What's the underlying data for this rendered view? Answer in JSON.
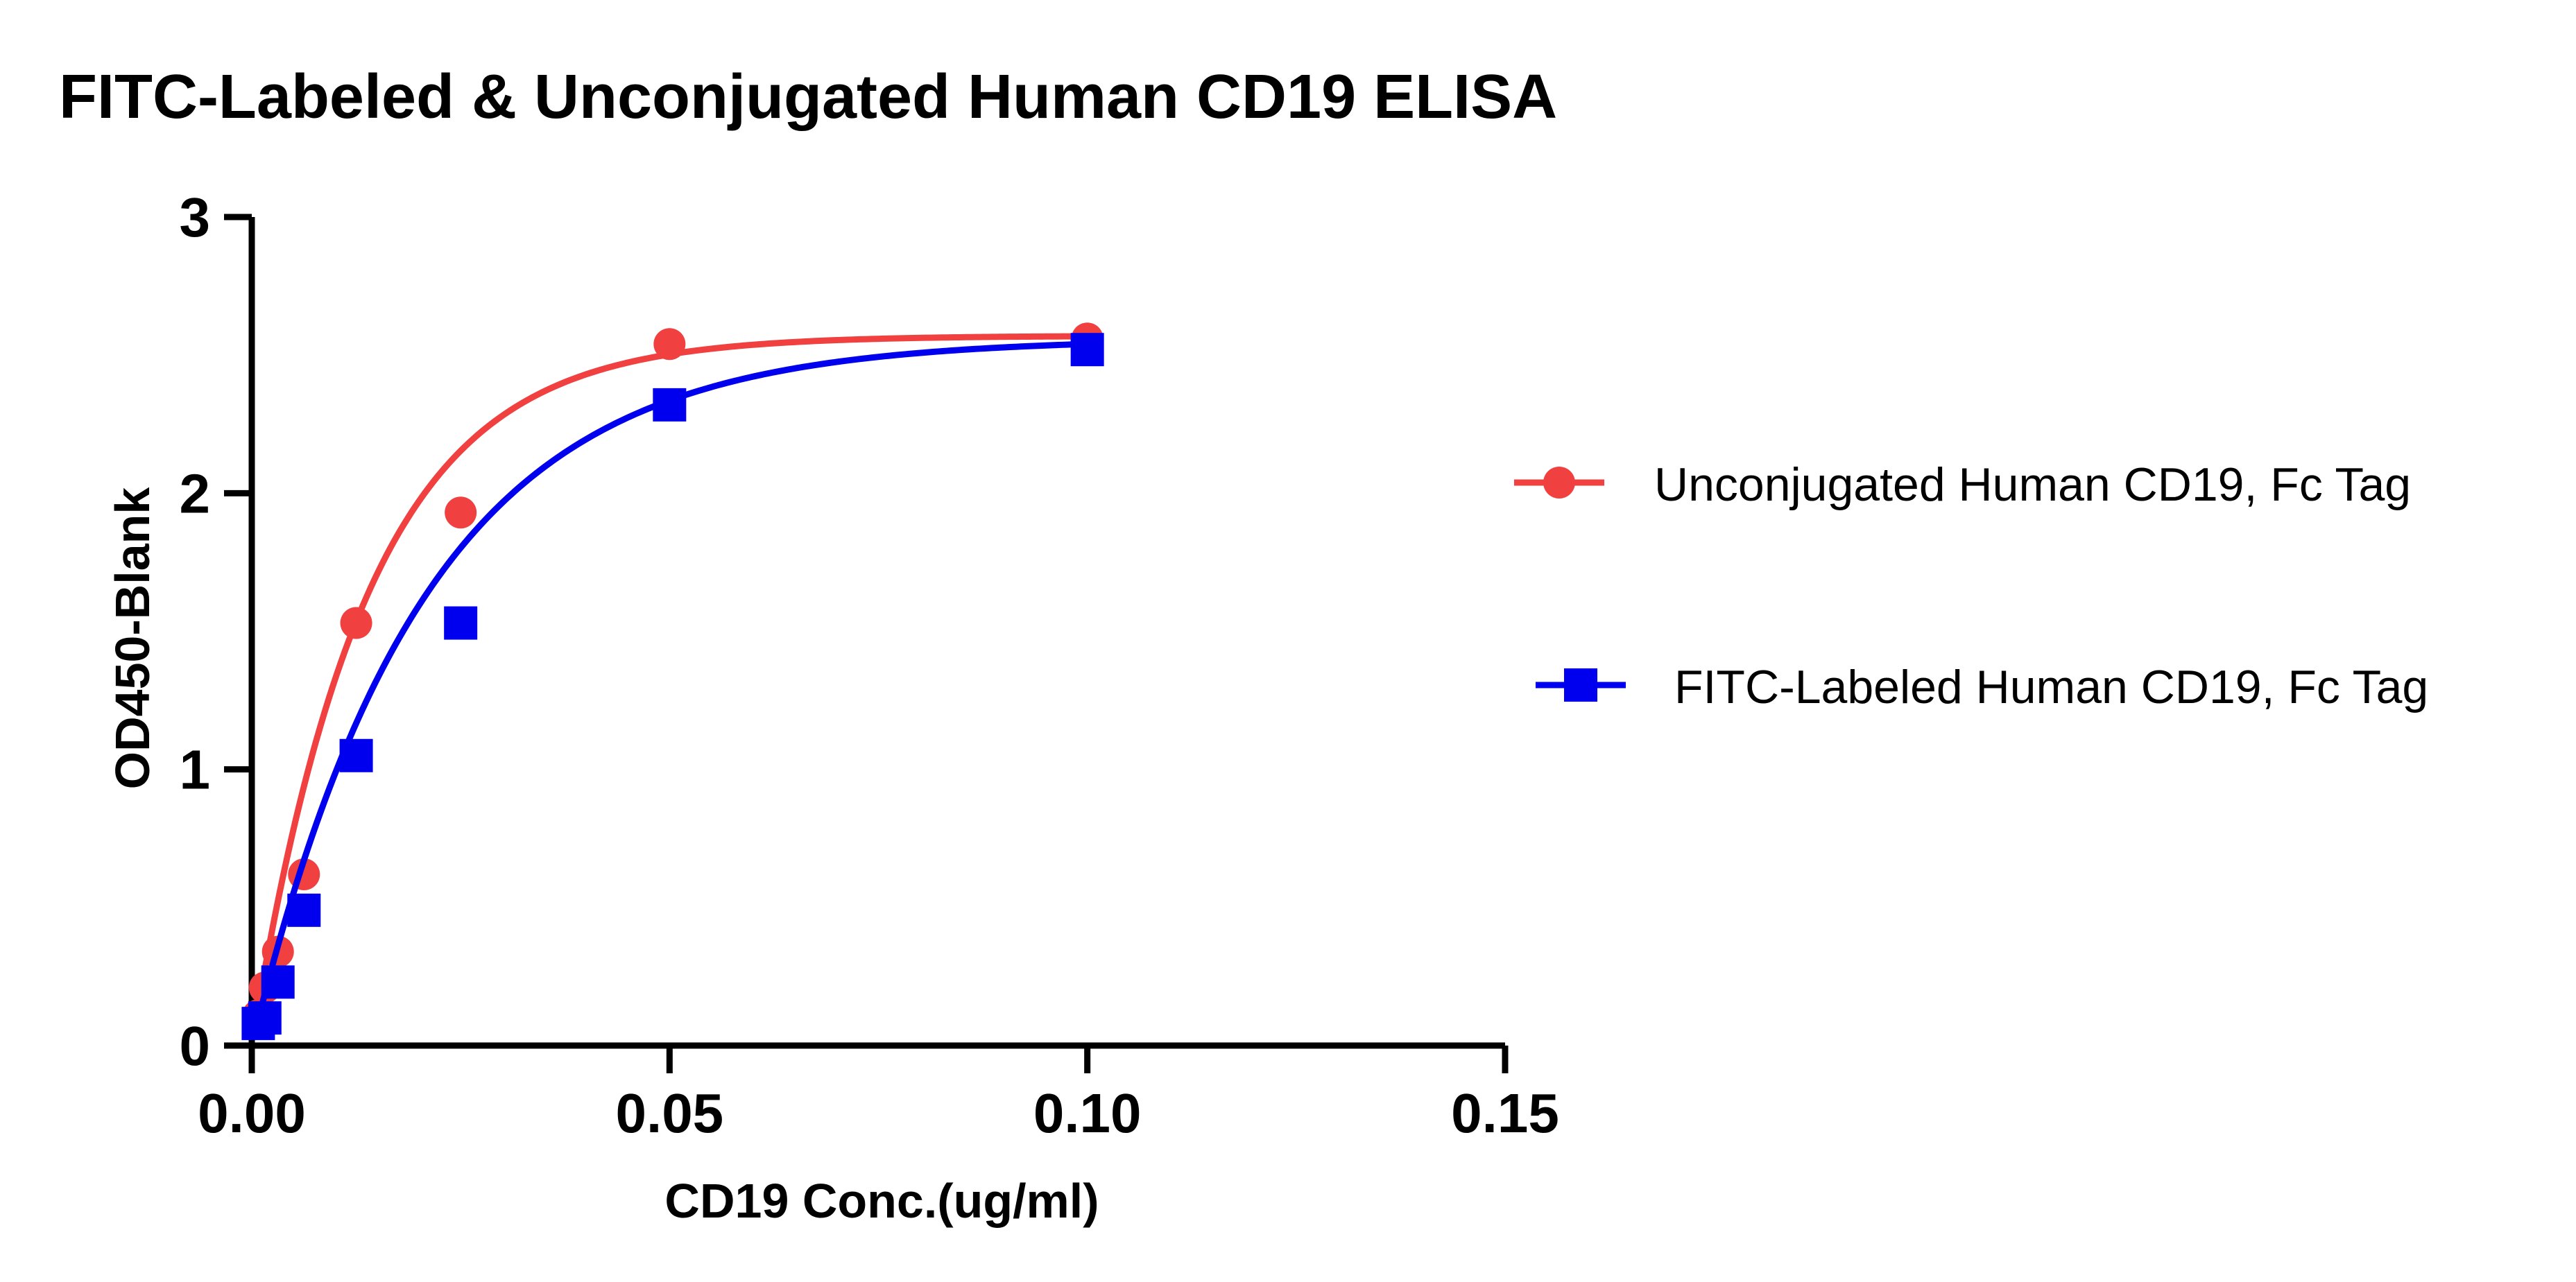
{
  "chart_data": {
    "type": "scatter",
    "title": "FITC-Labeled & Unconjugated Human CD19 ELISA",
    "xlabel": "CD19 Conc.(ug/ml)",
    "ylabel": "OD450-Blank",
    "xlim": [
      0,
      0.15
    ],
    "ylim": [
      0,
      3
    ],
    "xticks": [
      0.0,
      0.05,
      0.1,
      0.15
    ],
    "xtick_labels": [
      "0.00",
      "0.05",
      "0.10",
      "0.15"
    ],
    "yticks": [
      0,
      1,
      2,
      3
    ],
    "ytick_labels": [
      "0",
      "1",
      "2",
      "3"
    ],
    "legend_position": "right",
    "series": [
      {
        "name": "Unconjugated Human CD19, Fc Tag",
        "color": "#f04040",
        "marker": "circle",
        "x": [
          0.00078,
          0.00156,
          0.00313,
          0.00625,
          0.0125,
          0.025,
          0.05,
          0.1
        ],
        "y": [
          0.11,
          0.21,
          0.34,
          0.62,
          1.53,
          1.93,
          2.54,
          2.56
        ],
        "fit": {
          "bottom": 0.0,
          "top": 2.57,
          "k": 72.8
        }
      },
      {
        "name": "FITC-Labeled Human CD19, Fc Tag",
        "color": "#0000ee",
        "marker": "square",
        "x": [
          0.00078,
          0.00156,
          0.00313,
          0.00625,
          0.0125,
          0.025,
          0.05,
          0.1
        ],
        "y": [
          0.08,
          0.1,
          0.23,
          0.49,
          1.05,
          1.53,
          2.32,
          2.52
        ],
        "fit": {
          "bottom": 0.0,
          "top": 2.56,
          "k": 48.7
        }
      }
    ]
  }
}
